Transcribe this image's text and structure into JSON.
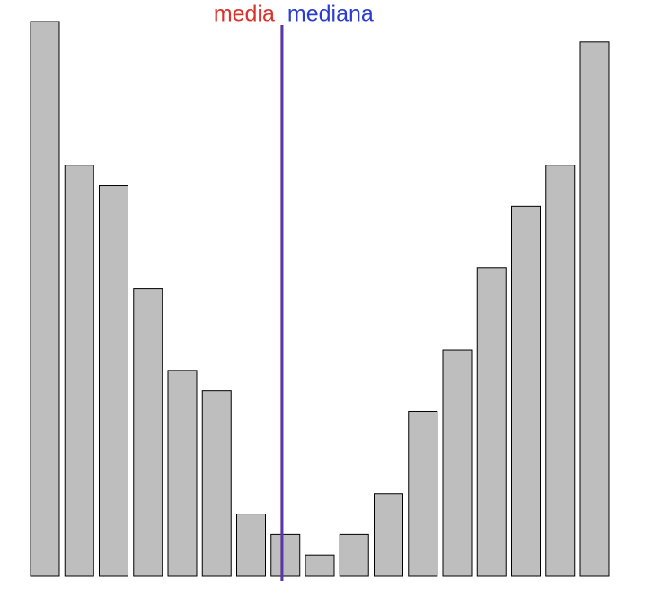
{
  "chart_data": {
    "type": "bar",
    "categories": [
      null,
      null,
      null,
      null,
      null,
      null,
      null,
      null,
      null,
      null,
      null,
      null,
      null,
      null,
      null,
      null,
      null
    ],
    "values": [
      27,
      20,
      19,
      14,
      10,
      9,
      3,
      2,
      1,
      2,
      4,
      8,
      11,
      15,
      18,
      20,
      26
    ],
    "color": "#bebebe",
    "ylim": [
      0,
      27
    ],
    "annotations": [
      {
        "text": "media",
        "color": "#d9342b",
        "x": 6.9
      },
      {
        "text": "mediana",
        "color": "#2a3bd1",
        "x": 6.9
      }
    ]
  }
}
